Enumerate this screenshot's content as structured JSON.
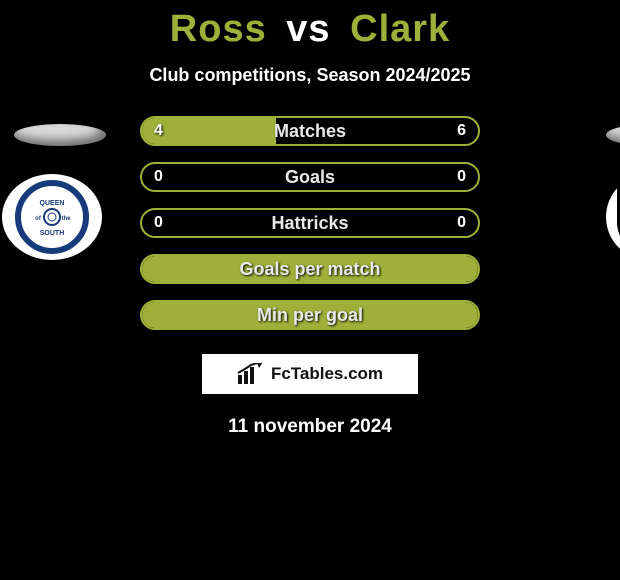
{
  "title": {
    "left": "Ross",
    "mid": "vs",
    "right": "Clark",
    "left_color": "#9fb03a",
    "right_color": "#9fb03a",
    "mid_color": "#ffffff"
  },
  "subtitle": "Club competitions, Season 2024/2025",
  "left": {
    "nameplate_bg": "#dcdcdc",
    "crest": "queen_south"
  },
  "right": {
    "nameplate_bg": "#dcdcdc",
    "crest": "dumbarton"
  },
  "bars": [
    {
      "label": "Matches",
      "lv": "4",
      "rv": "6",
      "lv_n": 4,
      "rv_n": 6,
      "border": "#9fb03a",
      "fill_bg": "#9fb03a",
      "fill_pct": 40
    },
    {
      "label": "Goals",
      "lv": "0",
      "rv": "0",
      "lv_n": 0,
      "rv_n": 0,
      "border": "#9fb03a",
      "fill_bg": "#9fb03a",
      "fill_pct": 0
    },
    {
      "label": "Hattricks",
      "lv": "0",
      "rv": "0",
      "lv_n": 0,
      "rv_n": 0,
      "border": "#9fb03a",
      "fill_bg": "#9fb03a",
      "fill_pct": 0
    },
    {
      "label": "Goals per match",
      "lv": "",
      "rv": "",
      "lv_n": 0,
      "rv_n": 0,
      "border": "#9fb03a",
      "fill_bg": "#9fb03a",
      "fill_pct": 100,
      "full": true
    },
    {
      "label": "Min per goal",
      "lv": "",
      "rv": "",
      "lv_n": 0,
      "rv_n": 0,
      "border": "#9fb03a",
      "fill_bg": "#9fb03a",
      "fill_pct": 100,
      "full": true
    }
  ],
  "fctag": "FcTables.com",
  "date": "11 november 2024",
  "palette": {
    "accent": "#9fb03a",
    "bg": "#000000",
    "text_on_dark": "#ffffff"
  }
}
